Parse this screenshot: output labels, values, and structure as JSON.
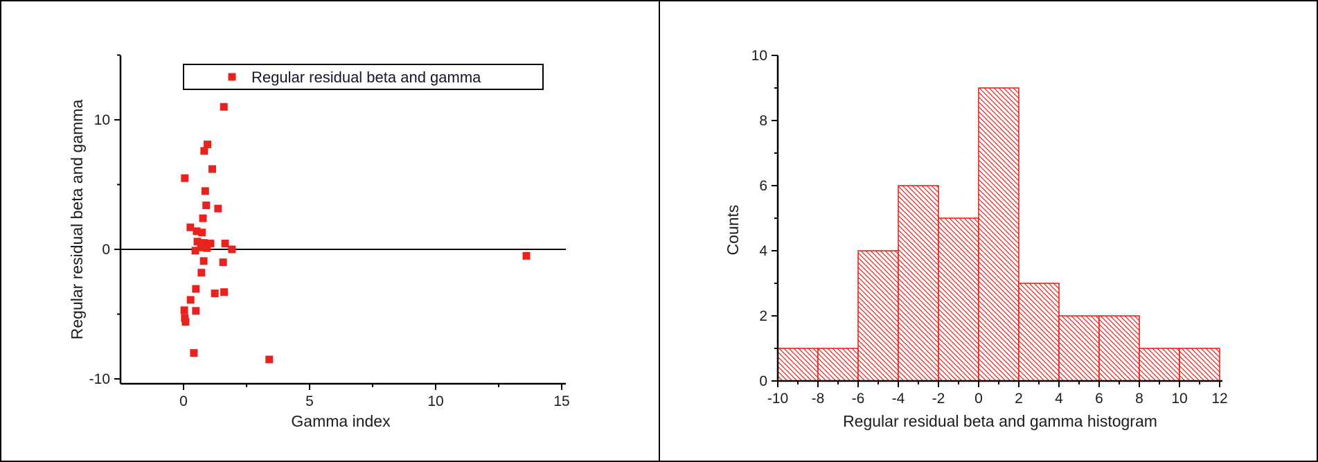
{
  "figure": {
    "background": "#ffffff",
    "border_color": "#000000"
  },
  "colors": {
    "series_red": "#e8221c",
    "axis_black": "#000000",
    "text_dark": "#1c1c1f"
  },
  "chart_data": [
    {
      "type": "scatter",
      "panel": "left",
      "xlabel": "Gamma index",
      "ylabel": "Regular residual beta and gamma",
      "legend_position": "top-inside",
      "grid": false,
      "xlim": [
        -2.5,
        15.2
      ],
      "ylim": [
        -10.4,
        15
      ],
      "x_ticks": [
        0,
        5,
        10,
        15
      ],
      "x_minor_ticks": [
        2.5,
        7.5,
        12.5
      ],
      "y_ticks": [
        -10,
        0,
        10
      ],
      "y_minor_ticks": [
        -5,
        5,
        15
      ],
      "reference_line_y": 0,
      "series": [
        {
          "name": "Regular residual beta and gamma",
          "marker": "filled-square",
          "color": "#e8221c",
          "points": [
            [
              1.6,
              11.0
            ],
            [
              0.95,
              8.1
            ],
            [
              0.82,
              7.6
            ],
            [
              1.14,
              6.2
            ],
            [
              0.05,
              5.5
            ],
            [
              0.86,
              4.5
            ],
            [
              0.9,
              3.4
            ],
            [
              1.37,
              3.15
            ],
            [
              0.77,
              2.4
            ],
            [
              0.27,
              1.7
            ],
            [
              0.52,
              1.4
            ],
            [
              0.73,
              1.3
            ],
            [
              0.55,
              0.6
            ],
            [
              0.82,
              0.5
            ],
            [
              1.07,
              0.45
            ],
            [
              1.65,
              0.45
            ],
            [
              0.69,
              0.15
            ],
            [
              0.93,
              0.1
            ],
            [
              0.47,
              -0.1
            ],
            [
              1.92,
              0.0
            ],
            [
              0.8,
              -0.9
            ],
            [
              1.57,
              -1.0
            ],
            [
              0.71,
              -1.8
            ],
            [
              0.49,
              -3.05
            ],
            [
              1.24,
              -3.4
            ],
            [
              1.61,
              -3.3
            ],
            [
              0.28,
              -3.9
            ],
            [
              0.49,
              -4.75
            ],
            [
              0.03,
              -4.7
            ],
            [
              0.05,
              -5.3
            ],
            [
              0.08,
              -5.6
            ],
            [
              0.41,
              -8.0
            ],
            [
              3.4,
              -8.5
            ],
            [
              13.6,
              -0.5
            ]
          ]
        }
      ]
    },
    {
      "type": "bar",
      "panel": "right",
      "histogram": true,
      "xlabel": "Regular residual beta and gamma histogram",
      "ylabel": "Counts",
      "legend_position": "none",
      "grid": false,
      "xlim": [
        -10,
        12
      ],
      "ylim": [
        0,
        10
      ],
      "bin_edges": [
        -10,
        -8,
        -6,
        -4,
        -2,
        0,
        2,
        4,
        6,
        8,
        10,
        12
      ],
      "values": [
        1,
        1,
        4,
        6,
        5,
        9,
        3,
        2,
        2,
        1,
        1
      ],
      "x_ticks": [
        -10,
        -8,
        -6,
        -4,
        -2,
        0,
        2,
        4,
        6,
        8,
        10,
        12
      ],
      "x_minor_ticks": [
        -9,
        -7,
        -5,
        -3,
        -1,
        1,
        3,
        5,
        7,
        9,
        11
      ],
      "y_ticks": [
        0,
        2,
        4,
        6,
        8,
        10
      ],
      "y_minor_ticks": [
        1,
        3,
        5,
        7,
        9
      ],
      "bar_fill": "diagonal-hatch",
      "hatch_direction": "down-right",
      "color": "#e8221c"
    }
  ]
}
